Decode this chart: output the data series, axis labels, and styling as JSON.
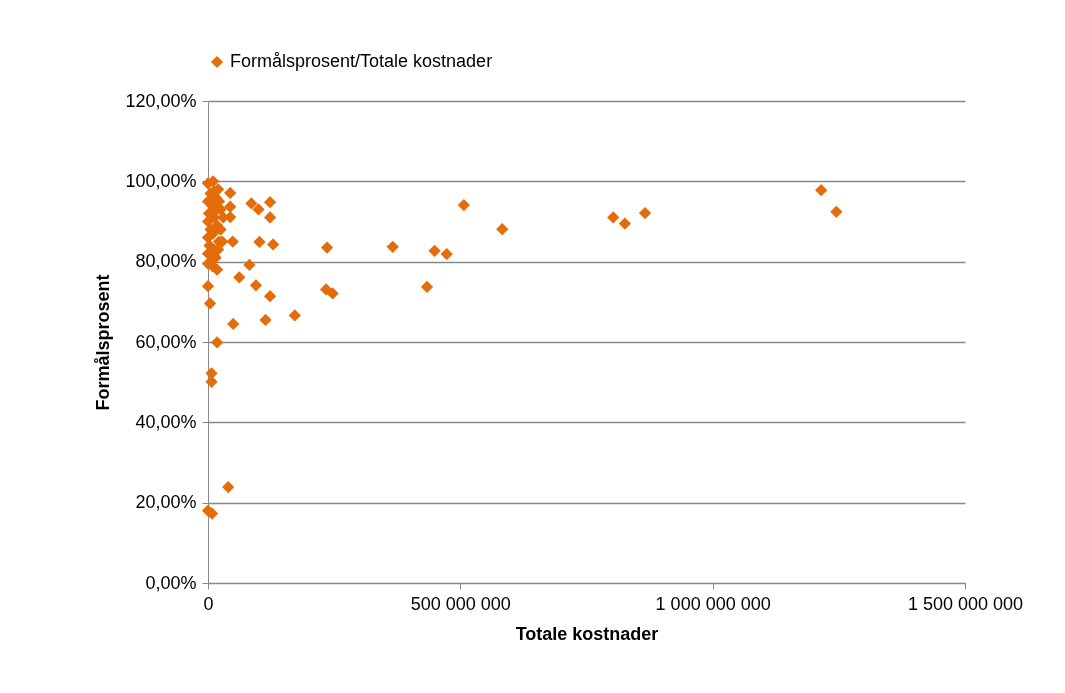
{
  "chart_data": {
    "type": "scatter",
    "xlabel": "Totale kostnader",
    "ylabel": "Formålsprosent",
    "legend": "top",
    "grid": "y",
    "marker": "diamond",
    "xlim": [
      0,
      1500000000
    ],
    "ylim": [
      0,
      120
    ],
    "xticks": [
      0,
      {
        "value": 500000000,
        "label": "500 000 000"
      },
      {
        "value": 1000000000,
        "label": "1 000 000 000"
      },
      {
        "value": 1500000000,
        "label": "1 500 000 000"
      }
    ],
    "yticks": [
      {
        "value": 0,
        "label": "0,00%"
      },
      {
        "value": 20,
        "label": "20,00%"
      },
      {
        "value": 40,
        "label": "40,00%"
      },
      {
        "value": 60,
        "label": "60,00%"
      },
      {
        "value": 80,
        "label": "80,00%"
      },
      {
        "value": 100,
        "label": "100,00%"
      },
      {
        "value": 120,
        "label": "120,00%"
      }
    ],
    "series": [
      {
        "name": "Formålsprosent/Totale kostnader",
        "color": "#e46c0a",
        "x": [
          1215000000,
          1245000000,
          803000000,
          826000000,
          866000000,
          449000000,
          473000000,
          507000000,
          583000000,
          366000000,
          434000000,
          236000000,
          234000000,
          247000000,
          172000000,
          114000000,
          123000000,
          95000000,
          82000000,
          62000000,
          50000000,
          49000000,
          102000000,
          129000000,
          86000000,
          100000000,
          123000000,
          123000000,
          44000000,
          44000000,
          44000000,
          40000000,
          0,
          8000000,
          7000000,
          7000000,
          18000000,
          4000000,
          0,
          9000000,
          10000000,
          0,
          20000000,
          5000000,
          15000000,
          0,
          8000000,
          25000000,
          2000000,
          12000000,
          0,
          18000000,
          5000000,
          10000000,
          0,
          22000000,
          3000000,
          12000000,
          0,
          15000000,
          6000000,
          0,
          18000000,
          28000000,
          22000000,
          12000000,
          30000000,
          18000000,
          25000000,
          20000000
        ],
        "values": [
          97.8,
          92.4,
          91.0,
          89.5,
          92.1,
          82.7,
          81.9,
          94.1,
          88.1,
          83.7,
          73.7,
          83.5,
          73.1,
          72.1,
          66.6,
          65.5,
          71.4,
          74.1,
          79.2,
          76.1,
          64.5,
          85.0,
          84.9,
          84.3,
          94.5,
          93.0,
          94.8,
          91.0,
          97.1,
          93.7,
          91.1,
          23.9,
          18.0,
          17.3,
          52.2,
          50.1,
          59.9,
          69.6,
          73.9,
          78.9,
          100,
          99.5,
          98,
          97,
          96,
          95,
          94,
          93,
          92,
          91,
          90,
          89,
          88,
          87,
          86,
          85,
          84,
          83,
          82,
          81,
          80,
          79.5,
          78,
          85,
          95,
          97.5,
          91,
          93,
          88,
          83
        ]
      }
    ]
  }
}
